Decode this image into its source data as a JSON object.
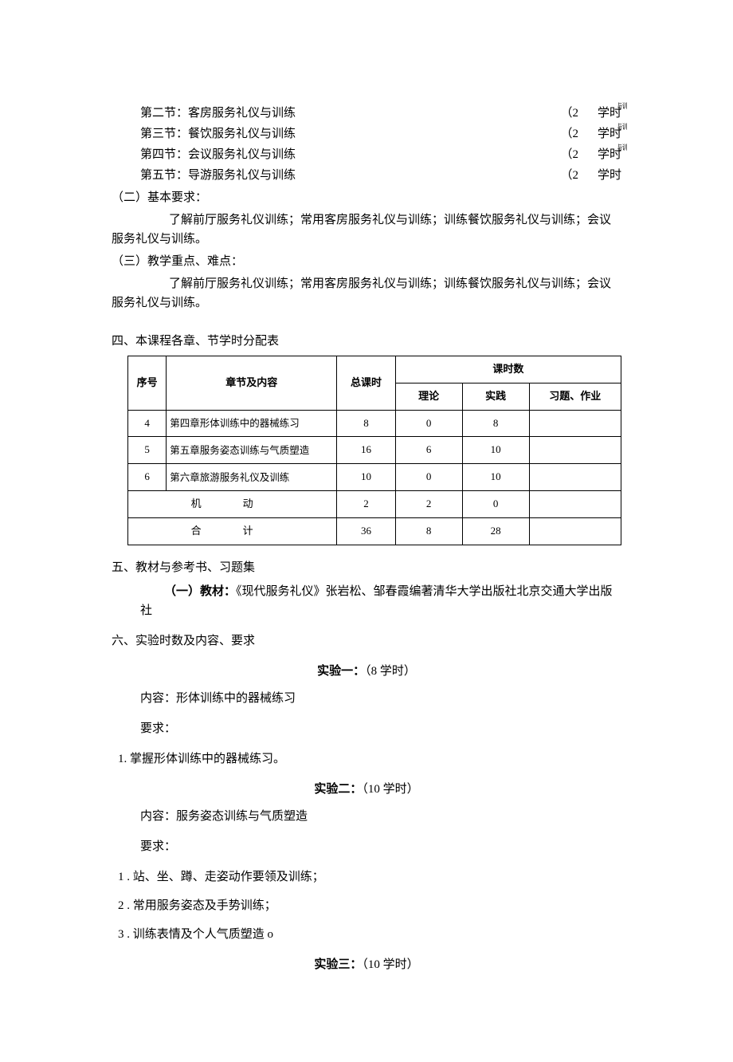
{
  "sections": [
    {
      "label": "第二节：客房服务礼仪与训练",
      "paren": "（2",
      "unit": "学时",
      "tiny": "与训"
    },
    {
      "label": "第三节：餐饮服务礼仪与训练",
      "paren": "（2",
      "unit": "学时",
      "tiny": "与训"
    },
    {
      "label": "第四节：会议服务礼仪与训练",
      "paren": "（2",
      "unit": "学时",
      "tiny": "与训"
    },
    {
      "label": "第五节：导游服务礼仪与训练",
      "paren": "（2",
      "unit": "学时",
      "tiny": ""
    }
  ],
  "req_heading": "（二）基本要求：",
  "req_body": "了解前厅服务礼仪训练；常用客房服务礼仪与训练；训练餐饮服务礼仪与训练；会议服务礼仪与训练。",
  "focus_heading": "（三）教学重点、难点：",
  "focus_body": "了解前厅服务礼仪训练；常用客房服务礼仪与训练；训练餐饮服务礼仪与训练；会议服务礼仪与训练。",
  "h4": "四、本课程各章、节学时分配表",
  "table": {
    "head": {
      "c0": "序号",
      "c1": "章节及内容",
      "c2": "总课时",
      "c3": "课时数",
      "c3a": "理论",
      "c3b": "实践",
      "c3c": "习题、作业"
    },
    "rows": [
      {
        "n": "4",
        "t": "第四章形体训练中的器械练习",
        "a": "8",
        "b": "0",
        "c": "8",
        "d": ""
      },
      {
        "n": "5",
        "t": "第五章服务姿态训练与气质塑造",
        "a": "16",
        "b": "6",
        "c": "10",
        "d": ""
      },
      {
        "n": "6",
        "t": "第六章旅游服务礼仪及训练",
        "a": "10",
        "b": "0",
        "c": "10",
        "d": ""
      }
    ],
    "foot1": {
      "label": "机动",
      "a": "2",
      "b": "2",
      "c": "0",
      "d": ""
    },
    "foot2": {
      "label": "合计",
      "a": "36",
      "b": "8",
      "c": "28",
      "d": ""
    }
  },
  "h5": "五、教材与参考书、习题集",
  "book_label": "（一）教材：",
  "book_text": "《现代服务礼仪》张岩松、邹春霞编著清华大学出版社北京交通大学出版社",
  "h6": "六、实验时数及内容、要求",
  "exp1": {
    "title_a": "实验一：",
    "title_b": "（8 学时）",
    "content": "内容：形体训练中的器械练习",
    "req": "要求：",
    "item1": "1. 掌握形体训练中的器械练习。"
  },
  "exp2": {
    "title_a": "实验二：",
    "title_b": "（10 学时）",
    "content": "内容：服务姿态训练与气质塑造",
    "req": "要求：",
    "item1": "1  . 站、坐、蹲、走姿动作要领及训练；",
    "item2": "2  . 常用服务姿态及手势训练；",
    "item3": "3  . 训练表情及个人气质塑造 o"
  },
  "exp3": {
    "title_a": "实验三：",
    "title_b": "（10 学时）"
  }
}
